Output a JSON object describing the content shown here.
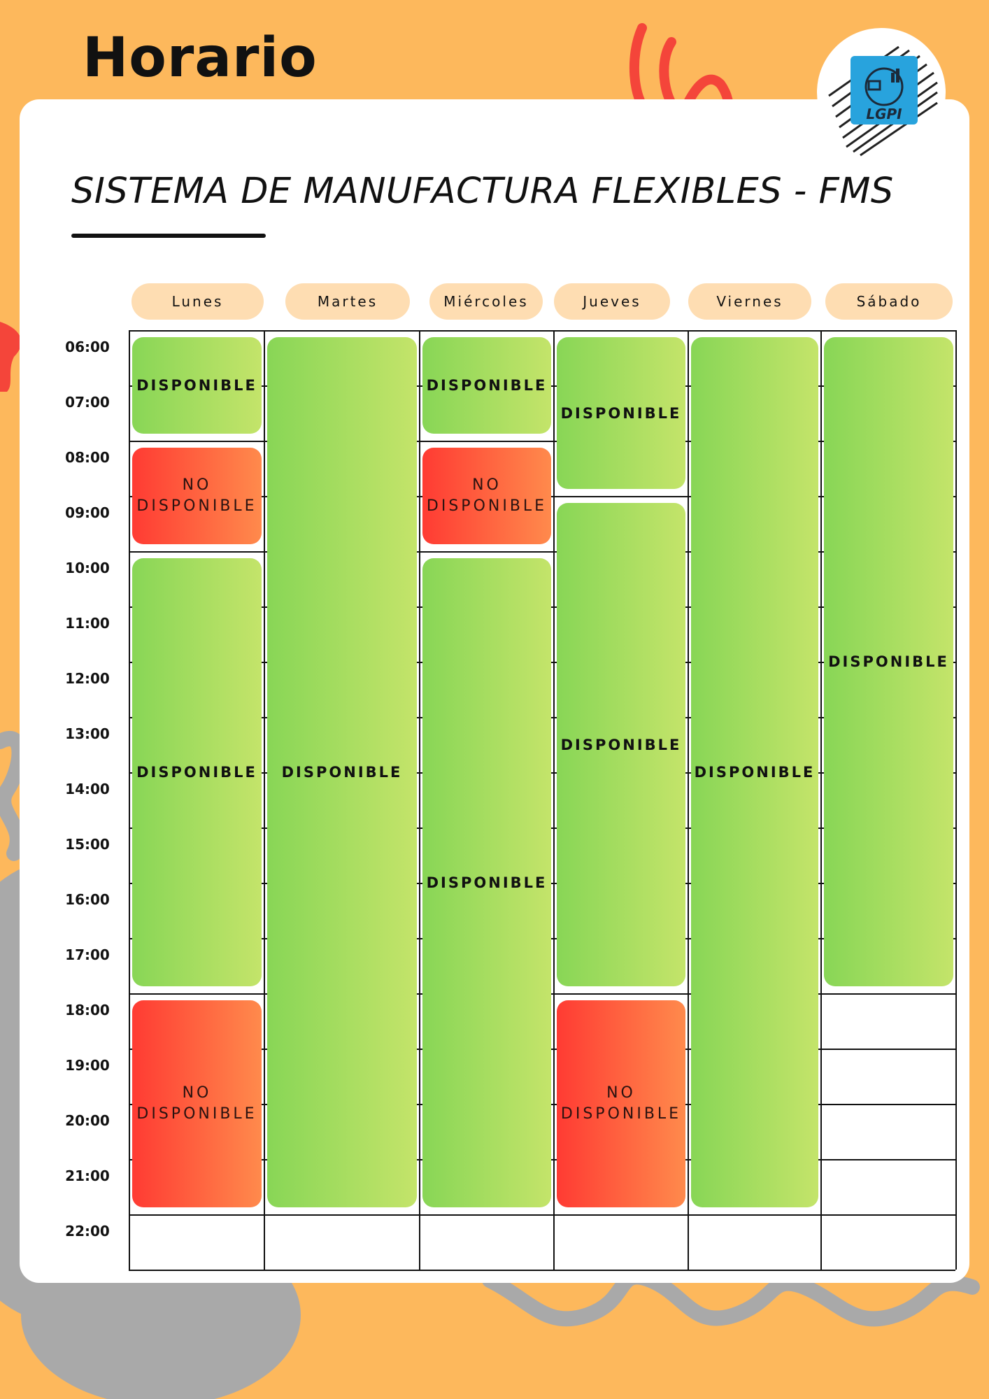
{
  "header": {
    "title": "Horario",
    "subtitle": "SISTEMA DE MANUFACTURA FLEXIBLES - FMS",
    "logo_text": "LGPI"
  },
  "days": [
    "Lunes",
    "Martes",
    "Miércoles",
    "Jueves",
    "Viernes",
    "Sábado"
  ],
  "times": [
    "06:00",
    "07:00",
    "08:00",
    "09:00",
    "10:00",
    "11:00",
    "12:00",
    "13:00",
    "14:00",
    "15:00",
    "16:00",
    "17:00",
    "18:00",
    "19:00",
    "20:00",
    "21:00",
    "22:00"
  ],
  "labels": {
    "available": "DISPONIBLE",
    "unavailable_line1": "NO",
    "unavailable_line2": "DISPONIBLE"
  },
  "colors": {
    "background": "#FDB85C",
    "card": "#FFFFFF",
    "day_pill": "#FEDDB2",
    "available_start": "#88D656",
    "available_end": "#C4E46A",
    "unavailable_start": "#FF3B33",
    "unavailable_end": "#FF8A4C",
    "accent_red": "#F4453A",
    "decoration_gray": "#A9A9A9"
  },
  "schedule": [
    {
      "day": "Lunes",
      "start": "06:00",
      "end": "08:00",
      "status": "available"
    },
    {
      "day": "Lunes",
      "start": "08:00",
      "end": "10:00",
      "status": "unavailable"
    },
    {
      "day": "Lunes",
      "start": "10:00",
      "end": "18:00",
      "status": "available"
    },
    {
      "day": "Lunes",
      "start": "18:00",
      "end": "22:00",
      "status": "unavailable"
    },
    {
      "day": "Martes",
      "start": "06:00",
      "end": "22:00",
      "status": "available"
    },
    {
      "day": "Miércoles",
      "start": "06:00",
      "end": "08:00",
      "status": "available"
    },
    {
      "day": "Miércoles",
      "start": "08:00",
      "end": "10:00",
      "status": "unavailable"
    },
    {
      "day": "Miércoles",
      "start": "10:00",
      "end": "22:00",
      "status": "available"
    },
    {
      "day": "Jueves",
      "start": "06:00",
      "end": "09:00",
      "status": "available"
    },
    {
      "day": "Jueves",
      "start": "09:00",
      "end": "18:00",
      "status": "available"
    },
    {
      "day": "Jueves",
      "start": "18:00",
      "end": "22:00",
      "status": "unavailable"
    },
    {
      "day": "Viernes",
      "start": "06:00",
      "end": "22:00",
      "status": "available"
    },
    {
      "day": "Sábado",
      "start": "06:00",
      "end": "18:00",
      "status": "available"
    }
  ]
}
